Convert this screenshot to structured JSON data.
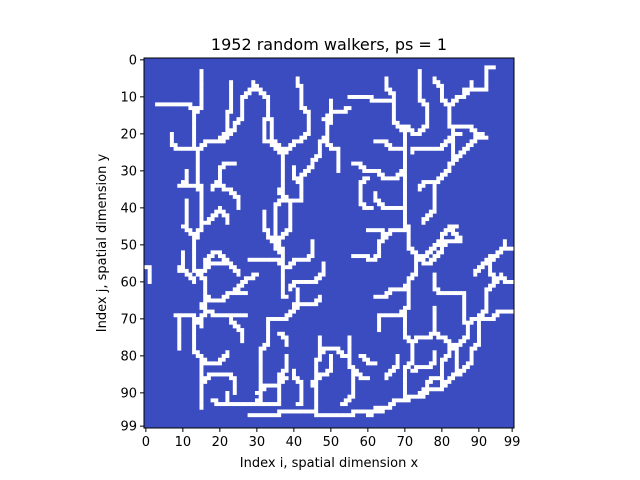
{
  "chart_data": {
    "type": "heatmap",
    "title": "1952 random walkers, ps = 1",
    "xlabel": "Index i, spatial dimension x",
    "ylabel": "Index j, spatial dimension y",
    "x_ticks": [
      0,
      10,
      20,
      30,
      40,
      50,
      60,
      70,
      80,
      90,
      99
    ],
    "y_ticks": [
      0,
      10,
      20,
      30,
      40,
      50,
      60,
      70,
      80,
      90,
      99
    ],
    "xlim": [
      0,
      99
    ],
    "ylim": [
      0,
      99
    ],
    "grid_size": [
      100,
      100
    ],
    "colors": {
      "empty": "#3b4cc0",
      "occupied": "#ffffff"
    },
    "occupied_paths": [
      [
        [
          15,
          94
        ],
        [
          15,
          80
        ],
        [
          13,
          72
        ],
        [
          16,
          60
        ],
        [
          13,
          48
        ],
        [
          15,
          35
        ],
        [
          14,
          24
        ],
        [
          13,
          14
        ],
        [
          15,
          3
        ]
      ],
      [
        [
          15,
          72
        ],
        [
          8,
          69
        ],
        [
          9,
          78
        ]
      ],
      [
        [
          13,
          60
        ],
        [
          9,
          57
        ],
        [
          10,
          52
        ]
      ],
      [
        [
          14,
          48
        ],
        [
          10,
          45
        ],
        [
          11,
          38
        ]
      ],
      [
        [
          14,
          35
        ],
        [
          9,
          34
        ],
        [
          11,
          30
        ]
      ],
      [
        [
          14,
          24
        ],
        [
          9,
          24
        ],
        [
          7,
          20
        ]
      ],
      [
        [
          13,
          14
        ],
        [
          8,
          12
        ],
        [
          3,
          12
        ]
      ],
      [
        [
          15,
          24
        ],
        [
          20,
          22
        ],
        [
          22,
          15
        ],
        [
          23,
          6
        ]
      ],
      [
        [
          20,
          22
        ],
        [
          24,
          18
        ],
        [
          26,
          10
        ],
        [
          29,
          6
        ]
      ],
      [
        [
          18,
          35
        ],
        [
          20,
          30
        ],
        [
          24,
          28
        ]
      ],
      [
        [
          16,
          44
        ],
        [
          20,
          40
        ],
        [
          22,
          44
        ]
      ],
      [
        [
          16,
          55
        ],
        [
          20,
          52
        ],
        [
          22,
          55
        ]
      ],
      [
        [
          15,
          58
        ],
        [
          22,
          55
        ],
        [
          25,
          58
        ]
      ],
      [
        [
          16,
          64
        ],
        [
          21,
          65
        ],
        [
          27,
          63
        ]
      ],
      [
        [
          15,
          66
        ],
        [
          18,
          68
        ],
        [
          27,
          69
        ]
      ],
      [
        [
          23,
          70
        ],
        [
          26,
          76
        ]
      ],
      [
        [
          24,
          62
        ],
        [
          28,
          59
        ],
        [
          30,
          58
        ]
      ],
      [
        [
          15,
          80
        ],
        [
          20,
          82
        ],
        [
          22,
          79
        ]
      ],
      [
        [
          15,
          87
        ],
        [
          22,
          85
        ],
        [
          24,
          90
        ]
      ],
      [
        [
          18,
          92
        ],
        [
          26,
          93
        ],
        [
          35,
          93
        ]
      ],
      [
        [
          22,
          93
        ],
        [
          22,
          90
        ]
      ],
      [
        [
          30,
          93
        ],
        [
          31,
          78
        ],
        [
          33,
          70
        ]
      ],
      [
        [
          33,
          70
        ],
        [
          38,
          70
        ],
        [
          41,
          62
        ]
      ],
      [
        [
          30,
          90
        ],
        [
          35,
          88
        ],
        [
          38,
          86
        ]
      ],
      [
        [
          38,
          64
        ],
        [
          37,
          52
        ],
        [
          35,
          40
        ],
        [
          37,
          25
        ],
        [
          34,
          17
        ]
      ],
      [
        [
          34,
          17
        ],
        [
          33,
          10
        ],
        [
          30,
          7
        ]
      ],
      [
        [
          37,
          25
        ],
        [
          32,
          22
        ],
        [
          32,
          16
        ]
      ],
      [
        [
          37,
          25
        ],
        [
          42,
          22
        ],
        [
          44,
          15
        ],
        [
          42,
          7
        ],
        [
          41,
          5
        ]
      ],
      [
        [
          36,
          35
        ],
        [
          41,
          38
        ],
        [
          42,
          31
        ]
      ],
      [
        [
          36,
          36
        ],
        [
          39,
          46
        ],
        [
          36,
          52
        ]
      ],
      [
        [
          37,
          52
        ],
        [
          33,
          47
        ],
        [
          32,
          41
        ]
      ],
      [
        [
          38,
          56
        ],
        [
          43,
          54
        ],
        [
          45,
          49
        ]
      ],
      [
        [
          36,
          55
        ],
        [
          28,
          54
        ]
      ],
      [
        [
          39,
          62
        ],
        [
          45,
          60
        ],
        [
          48,
          55
        ]
      ],
      [
        [
          40,
          66
        ],
        [
          46,
          66
        ],
        [
          47,
          64
        ]
      ],
      [
        [
          45,
          28
        ],
        [
          47,
          22
        ],
        [
          49,
          17
        ],
        [
          50,
          11
        ]
      ],
      [
        [
          45,
          28
        ],
        [
          42,
          33
        ],
        [
          40,
          29
        ]
      ],
      [
        [
          48,
          22
        ],
        [
          51,
          24
        ],
        [
          52,
          30
        ]
      ],
      [
        [
          48,
          16
        ],
        [
          53,
          14
        ],
        [
          55,
          13
        ]
      ],
      [
        [
          28,
          96
        ],
        [
          35,
          96
        ],
        [
          46,
          95
        ],
        [
          56,
          96
        ],
        [
          64,
          95
        ]
      ],
      [
        [
          36,
          93
        ],
        [
          36,
          85
        ],
        [
          38,
          80
        ]
      ],
      [
        [
          41,
          93
        ],
        [
          42,
          88
        ],
        [
          40,
          84
        ]
      ],
      [
        [
          46,
          95
        ],
        [
          46,
          82
        ],
        [
          47,
          75
        ]
      ],
      [
        [
          45,
          88
        ],
        [
          48,
          85
        ],
        [
          50,
          80
        ]
      ],
      [
        [
          47,
          80
        ],
        [
          52,
          78
        ],
        [
          55,
          80
        ]
      ],
      [
        [
          53,
          93
        ],
        [
          56,
          84
        ],
        [
          55,
          75
        ]
      ],
      [
        [
          56,
          84
        ],
        [
          60,
          86
        ]
      ],
      [
        [
          60,
          96
        ],
        [
          66,
          94
        ],
        [
          70,
          92
        ],
        [
          74,
          91
        ],
        [
          79,
          89
        ],
        [
          84,
          85
        ],
        [
          88,
          78
        ]
      ],
      [
        [
          70,
          92
        ],
        [
          70,
          84
        ],
        [
          72,
          76
        ],
        [
          70,
          68
        ],
        [
          71,
          60
        ],
        [
          73,
          52
        ],
        [
          71,
          45
        ],
        [
          70,
          39
        ],
        [
          70,
          30
        ],
        [
          70,
          20
        ],
        [
          67,
          10
        ],
        [
          65,
          5
        ]
      ],
      [
        [
          70,
          18
        ],
        [
          74,
          20
        ],
        [
          76,
          12
        ],
        [
          74,
          3
        ]
      ],
      [
        [
          67,
          10
        ],
        [
          61,
          11
        ],
        [
          55,
          10
        ]
      ],
      [
        [
          70,
          25
        ],
        [
          66,
          24
        ],
        [
          62,
          22
        ]
      ],
      [
        [
          70,
          30
        ],
        [
          64,
          32
        ],
        [
          59,
          30
        ],
        [
          56,
          28
        ]
      ],
      [
        [
          60,
          32
        ],
        [
          58,
          38
        ],
        [
          61,
          40
        ]
      ],
      [
        [
          70,
          39
        ],
        [
          65,
          40
        ],
        [
          62,
          36
        ]
      ],
      [
        [
          71,
          45
        ],
        [
          66,
          46
        ],
        [
          63,
          52
        ]
      ],
      [
        [
          63,
          52
        ],
        [
          60,
          54
        ],
        [
          56,
          53
        ]
      ],
      [
        [
          65,
          48
        ],
        [
          60,
          46
        ]
      ],
      [
        [
          73,
          52
        ],
        [
          77,
          55
        ],
        [
          80,
          50
        ]
      ],
      [
        [
          71,
          60
        ],
        [
          66,
          62
        ],
        [
          62,
          64
        ]
      ],
      [
        [
          70,
          68
        ],
        [
          64,
          69
        ],
        [
          63,
          73
        ]
      ],
      [
        [
          72,
          76
        ],
        [
          76,
          75
        ],
        [
          78,
          71
        ]
      ],
      [
        [
          72,
          84
        ],
        [
          76,
          83
        ],
        [
          78,
          79
        ]
      ],
      [
        [
          74,
          91
        ],
        [
          76,
          88
        ],
        [
          80,
          86
        ]
      ],
      [
        [
          84,
          85
        ],
        [
          84,
          78
        ],
        [
          87,
          71
        ],
        [
          86,
          63
        ]
      ],
      [
        [
          88,
          78
        ],
        [
          90,
          70
        ],
        [
          92,
          63
        ]
      ],
      [
        [
          84,
          78
        ],
        [
          80,
          75
        ],
        [
          78,
          67
        ]
      ],
      [
        [
          79,
          89
        ],
        [
          80,
          82
        ],
        [
          82,
          78
        ]
      ],
      [
        [
          87,
          71
        ],
        [
          93,
          70
        ],
        [
          99,
          68
        ]
      ],
      [
        [
          92,
          63
        ],
        [
          96,
          58
        ],
        [
          99,
          60
        ]
      ],
      [
        [
          95,
          60
        ],
        [
          93,
          54
        ],
        [
          97,
          49
        ]
      ],
      [
        [
          86,
          63
        ],
        [
          80,
          63
        ],
        [
          78,
          58
        ]
      ],
      [
        [
          89,
          58
        ],
        [
          95,
          53
        ],
        [
          99,
          51
        ]
      ],
      [
        [
          75,
          54
        ],
        [
          80,
          48
        ],
        [
          84,
          45
        ]
      ],
      [
        [
          80,
          50
        ],
        [
          85,
          49
        ],
        [
          83,
          46
        ]
      ],
      [
        [
          74,
          35
        ],
        [
          78,
          33
        ],
        [
          82,
          28
        ],
        [
          88,
          22
        ]
      ],
      [
        [
          78,
          33
        ],
        [
          78,
          40
        ],
        [
          75,
          44
        ]
      ],
      [
        [
          82,
          28
        ],
        [
          83,
          18
        ],
        [
          82,
          12
        ],
        [
          80,
          8
        ],
        [
          78,
          5
        ]
      ],
      [
        [
          83,
          18
        ],
        [
          88,
          18
        ],
        [
          91,
          20
        ]
      ],
      [
        [
          82,
          12
        ],
        [
          86,
          10
        ],
        [
          88,
          6
        ]
      ],
      [
        [
          86,
          8
        ],
        [
          91,
          8
        ],
        [
          92,
          3
        ],
        [
          94,
          2
        ]
      ],
      [
        [
          88,
          22
        ],
        [
          92,
          21
        ]
      ],
      [
        [
          72,
          25
        ],
        [
          80,
          24
        ],
        [
          85,
          20
        ]
      ],
      [
        [
          0,
          56
        ],
        [
          1,
          60
        ]
      ],
      [
        [
          19,
          33
        ],
        [
          23,
          35
        ],
        [
          25,
          40
        ]
      ],
      [
        [
          36,
          74
        ],
        [
          38,
          77
        ]
      ],
      [
        [
          58,
          80
        ],
        [
          62,
          82
        ]
      ],
      [
        [
          65,
          86
        ],
        [
          68,
          80
        ]
      ]
    ]
  }
}
